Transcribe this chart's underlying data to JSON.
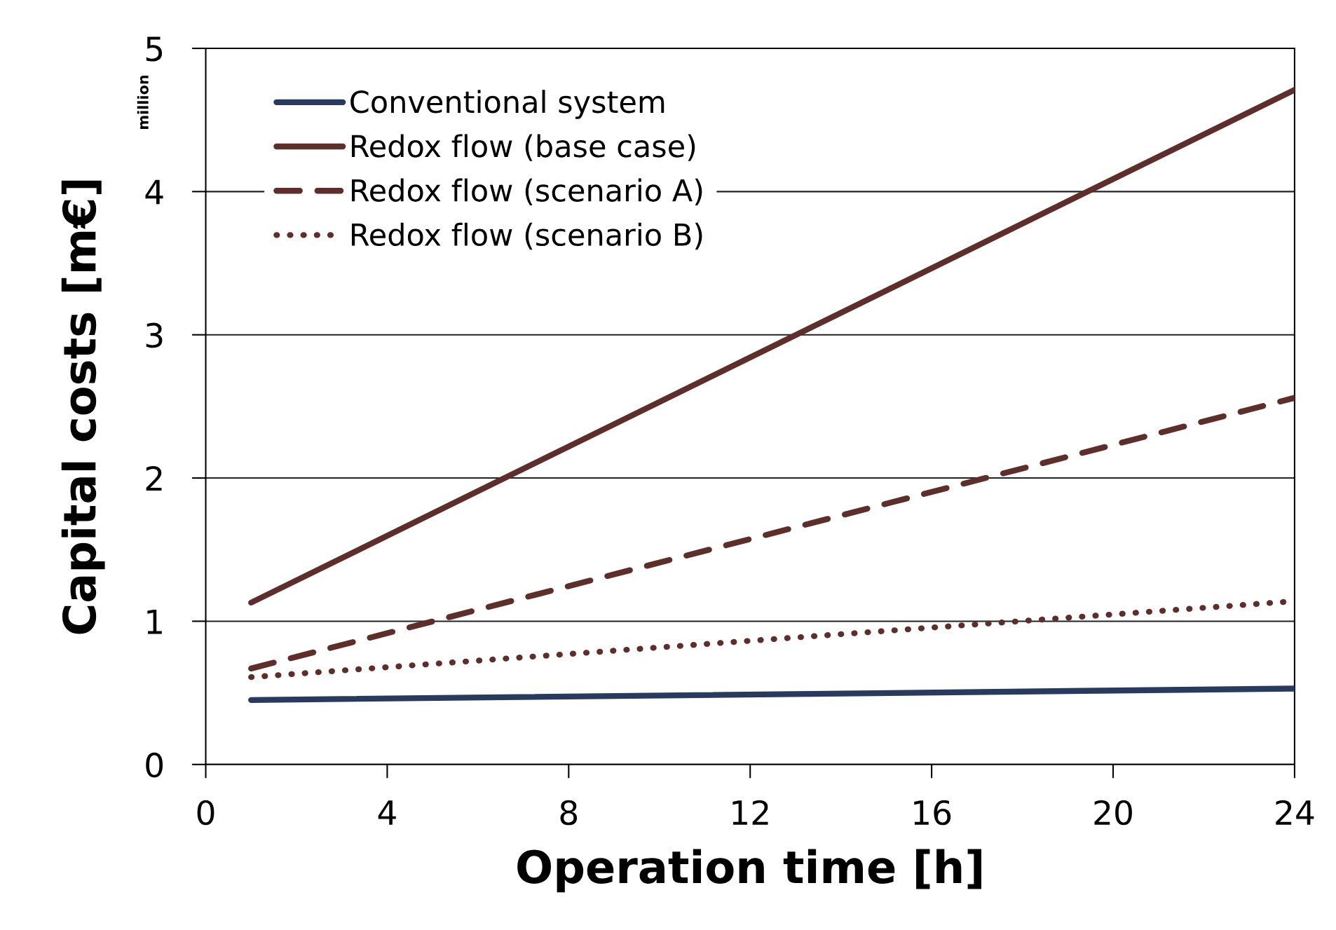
{
  "chart_data": {
    "type": "line",
    "xlabel": "Operation time [h]",
    "ylabel": "Capital costs [m€]",
    "annotations": [
      "million"
    ],
    "x": [
      1,
      24
    ],
    "xlim": [
      0,
      24
    ],
    "xticks": [
      0,
      4,
      8,
      12,
      16,
      20,
      24
    ],
    "ylim": [
      0,
      5
    ],
    "yticks": [
      0,
      1,
      2,
      3,
      4,
      5
    ],
    "grid": "y",
    "legend": "top left",
    "series": [
      {
        "name": "Conventional system",
        "color": "#283a5e",
        "values": [
          0.45,
          0.53
        ],
        "line_style": "solid"
      },
      {
        "name": "Redox flow (base case)",
        "color": "#5e2e2b",
        "values": [
          1.13,
          4.71
        ],
        "line_style": "solid"
      },
      {
        "name": "Redox flow (scenario A)",
        "color": "#5e2e2b",
        "values": [
          0.67,
          2.56
        ],
        "line_style": "dashed"
      },
      {
        "name": "Redox flow (scenario B)",
        "color": "#5e2e2b",
        "values": [
          0.61,
          1.14
        ],
        "line_style": "dotted"
      }
    ]
  }
}
